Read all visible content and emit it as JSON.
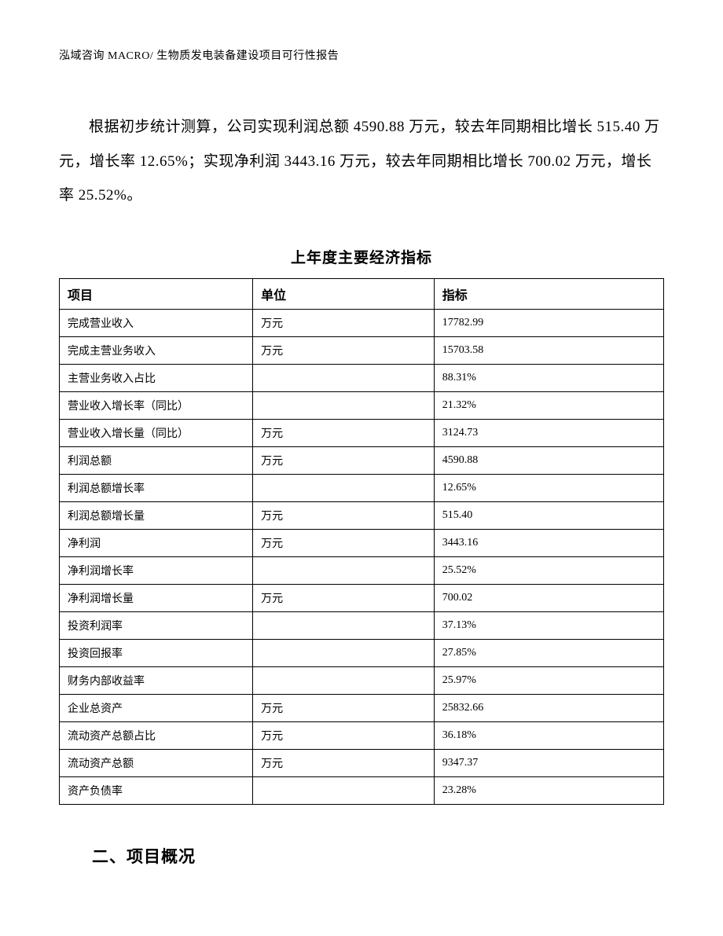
{
  "header": "泓域咨询 MACRO/  生物质发电装备建设项目可行性报告",
  "paragraph": "根据初步统计测算，公司实现利润总额 4590.88 万元，较去年同期相比增长 515.40 万元，增长率 12.65%；实现净利润 3443.16 万元，较去年同期相比增长 700.02 万元，增长率 25.52%。",
  "table": {
    "title": "上年度主要经济指标",
    "headers": {
      "item": "项目",
      "unit": "单位",
      "value": "指标"
    },
    "rows": [
      {
        "item": "完成营业收入",
        "unit": "万元",
        "value": "17782.99"
      },
      {
        "item": "完成主营业务收入",
        "unit": "万元",
        "value": "15703.58"
      },
      {
        "item": "主营业务收入占比",
        "unit": "",
        "value": "88.31%"
      },
      {
        "item": "营业收入增长率（同比）",
        "unit": "",
        "value": "21.32%"
      },
      {
        "item": "营业收入增长量（同比）",
        "unit": "万元",
        "value": "3124.73"
      },
      {
        "item": "利润总额",
        "unit": "万元",
        "value": "4590.88"
      },
      {
        "item": "利润总额增长率",
        "unit": "",
        "value": "12.65%"
      },
      {
        "item": "利润总额增长量",
        "unit": "万元",
        "value": "515.40"
      },
      {
        "item": "净利润",
        "unit": "万元",
        "value": "3443.16"
      },
      {
        "item": "净利润增长率",
        "unit": "",
        "value": "25.52%"
      },
      {
        "item": "净利润增长量",
        "unit": "万元",
        "value": "700.02"
      },
      {
        "item": "投资利润率",
        "unit": "",
        "value": "37.13%"
      },
      {
        "item": "投资回报率",
        "unit": "",
        "value": "27.85%"
      },
      {
        "item": "财务内部收益率",
        "unit": "",
        "value": "25.97%"
      },
      {
        "item": "企业总资产",
        "unit": "万元",
        "value": "25832.66"
      },
      {
        "item": "流动资产总额占比",
        "unit": "万元",
        "value": "36.18%"
      },
      {
        "item": "流动资产总额",
        "unit": "万元",
        "value": "9347.37"
      },
      {
        "item": "资产负债率",
        "unit": "",
        "value": "23.28%"
      }
    ]
  },
  "sectionHeading": "二、项目概况"
}
